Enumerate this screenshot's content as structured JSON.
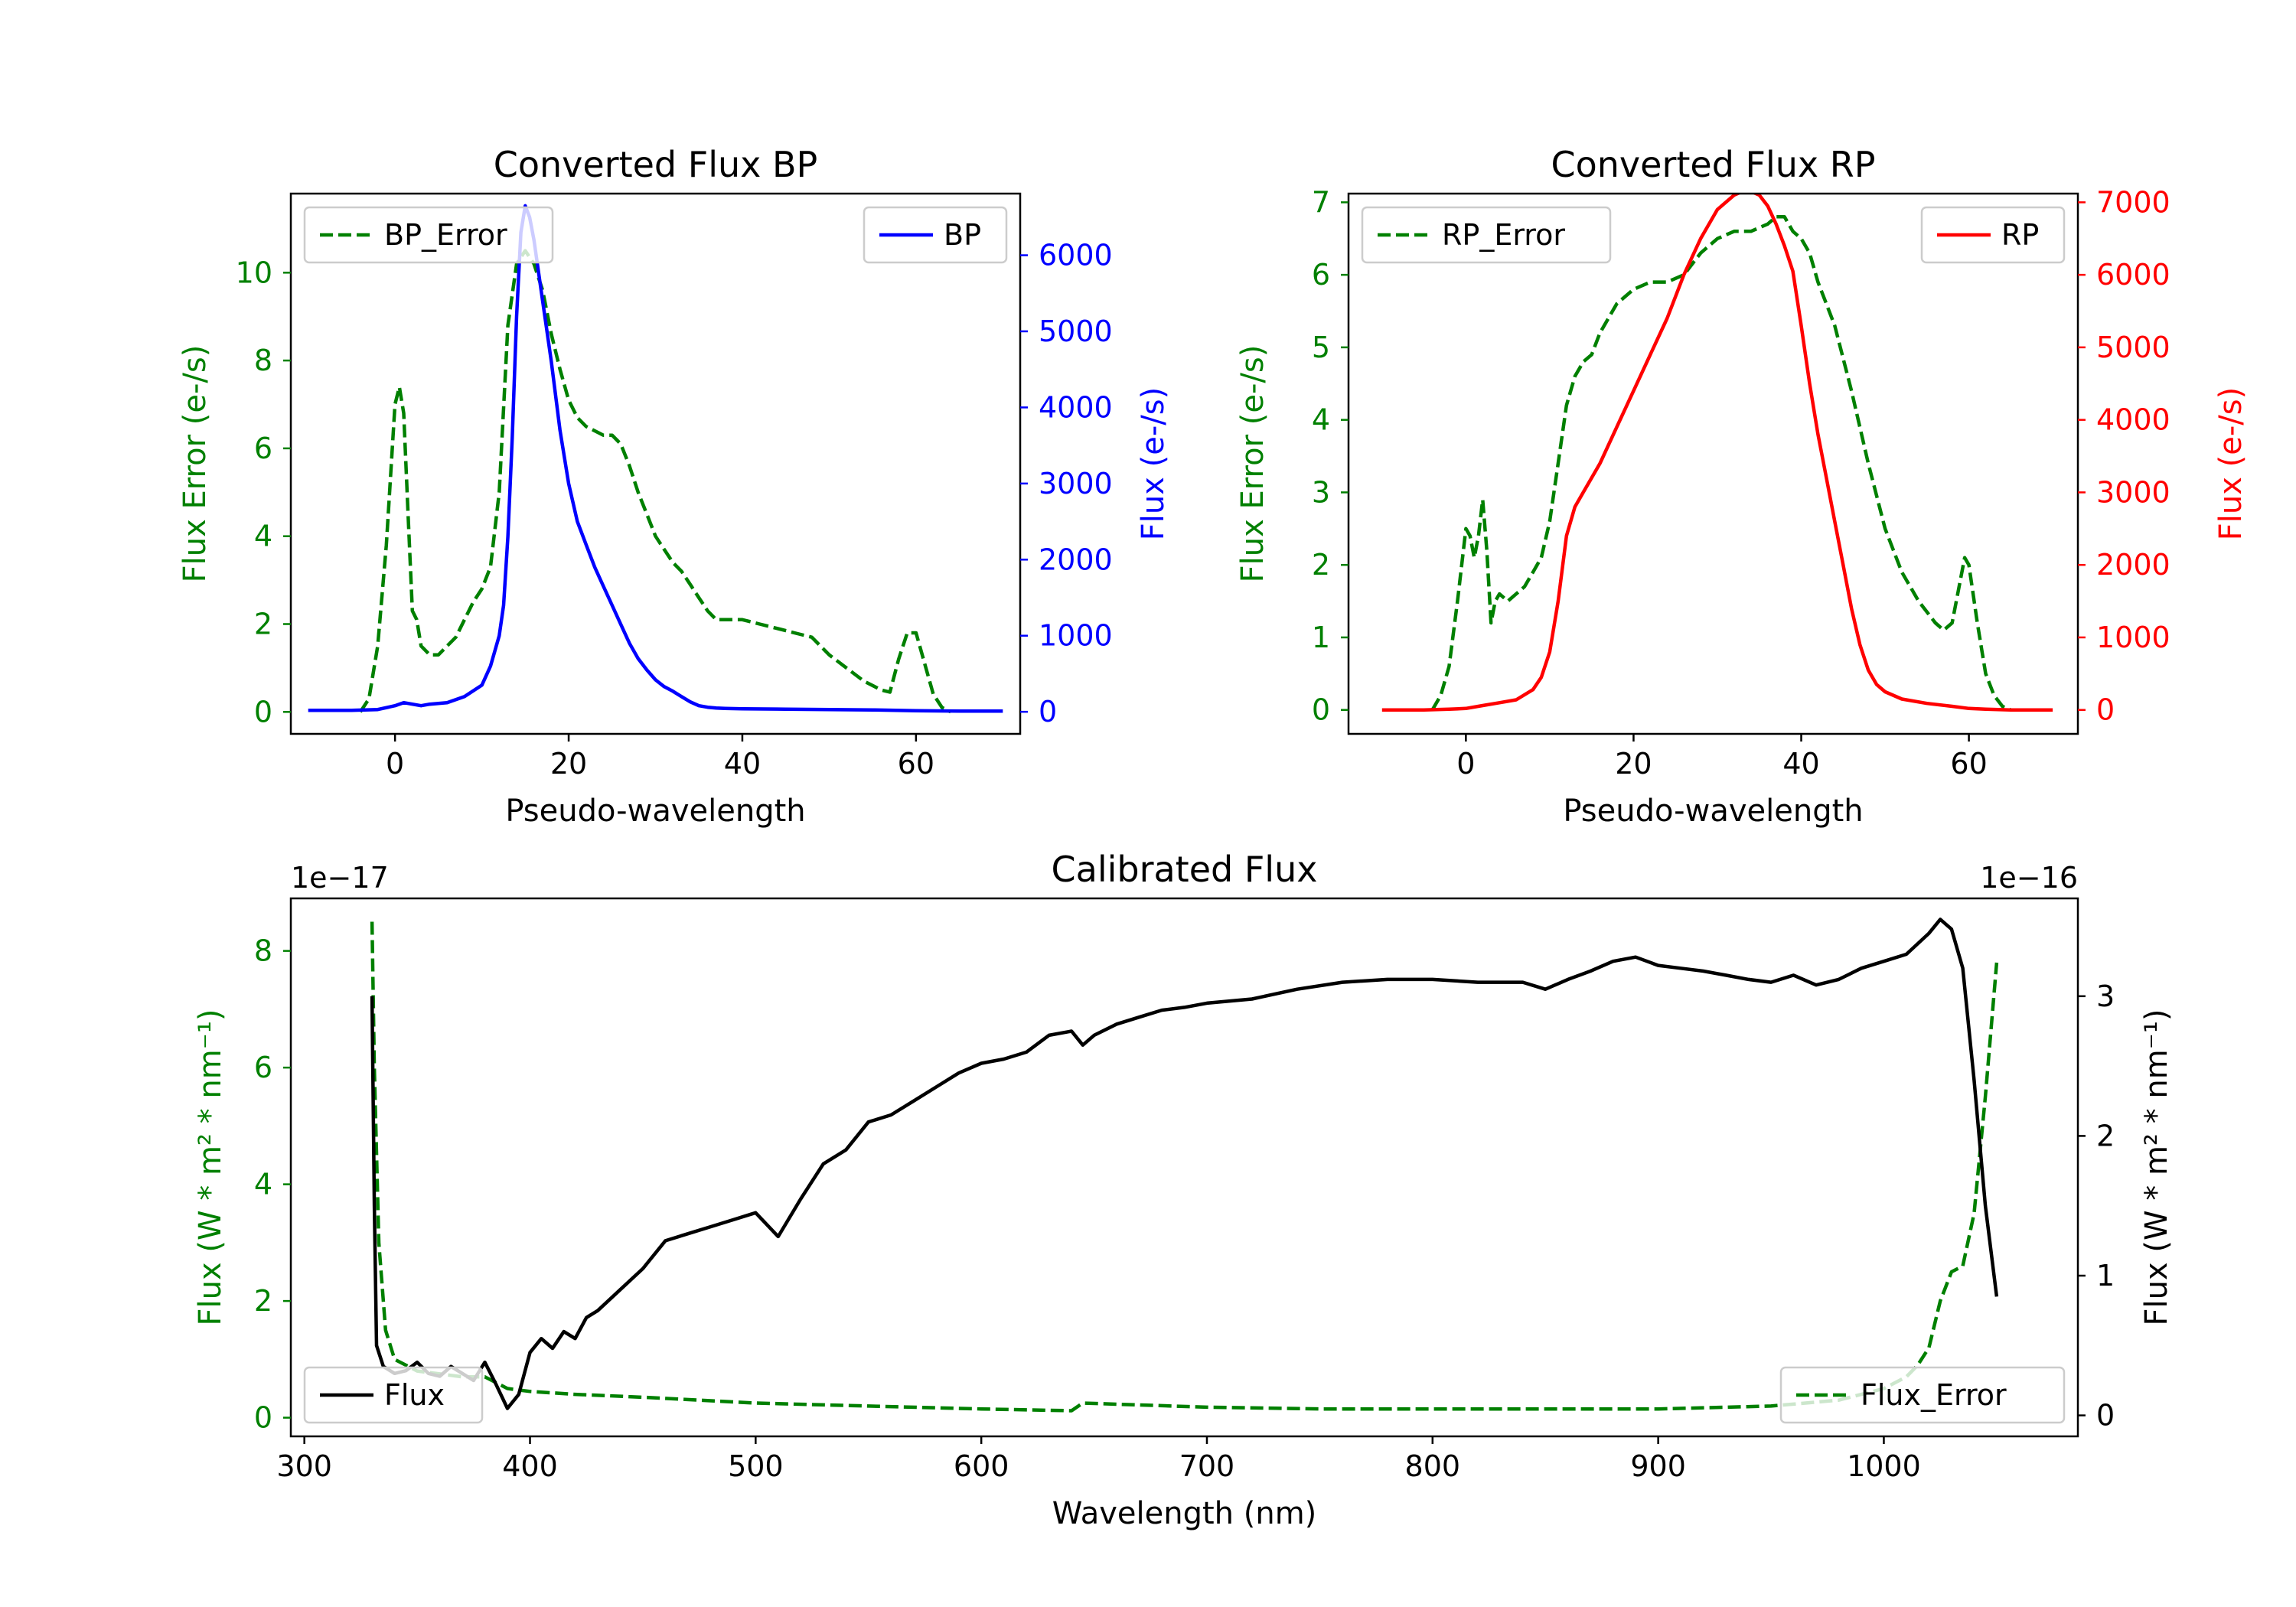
{
  "colors": {
    "green": "#008000",
    "blue": "#0000ff",
    "red": "#ff0000",
    "black": "#000000"
  },
  "chart_data": [
    {
      "id": "bp",
      "type": "line",
      "title": "Converted Flux BP",
      "xlabel": "Pseudo-wavelength",
      "ylabel_left": "Flux Error (e-/s)",
      "ylabel_right": "Flux (e-/s)",
      "xlim": [
        -12,
        72
      ],
      "ylim_left": [
        -0.5,
        11.8
      ],
      "ylim_right": [
        -290,
        6810
      ],
      "xticks": [
        0,
        20,
        40,
        60
      ],
      "yticks_left": [
        0,
        2,
        4,
        6,
        8,
        10
      ],
      "yticks_right": [
        0,
        1000,
        2000,
        3000,
        4000,
        5000,
        6000
      ],
      "left_axis_color": "#008000",
      "right_axis_color": "#0000ff",
      "series": [
        {
          "name": "BP_Error",
          "axis": "left",
          "style": "dashed",
          "color": "#008000",
          "x": [
            -4,
            -3,
            -2,
            -1,
            0,
            0.5,
            1,
            1.5,
            2,
            2.5,
            3,
            4,
            5,
            6,
            7,
            8,
            9,
            10,
            11,
            12,
            13,
            14,
            15,
            16,
            17,
            18,
            19,
            20,
            21,
            22,
            23,
            24,
            25,
            26,
            27,
            28,
            29,
            30,
            31,
            32,
            33,
            34,
            35,
            36,
            37,
            38,
            39,
            40,
            42,
            44,
            46,
            48,
            50,
            52,
            54,
            56,
            57,
            58,
            59,
            60,
            61,
            62,
            63,
            64
          ],
          "y": [
            0,
            0.3,
            1.5,
            3.8,
            7.0,
            7.4,
            6.8,
            4.5,
            2.3,
            2.1,
            1.5,
            1.3,
            1.3,
            1.5,
            1.7,
            2.1,
            2.5,
            2.8,
            3.3,
            5.0,
            8.8,
            10.2,
            10.5,
            10.2,
            9.6,
            8.6,
            7.8,
            7.1,
            6.7,
            6.5,
            6.4,
            6.3,
            6.3,
            6.1,
            5.6,
            5.0,
            4.5,
            4.0,
            3.7,
            3.4,
            3.2,
            2.9,
            2.6,
            2.3,
            2.1,
            2.1,
            2.1,
            2.1,
            2.0,
            1.9,
            1.8,
            1.7,
            1.3,
            1.0,
            0.7,
            0.5,
            0.45,
            1.2,
            1.8,
            1.8,
            1.1,
            0.4,
            0.1,
            0
          ]
        },
        {
          "name": "BP",
          "axis": "right",
          "style": "solid",
          "color": "#0000ff",
          "x": [
            -10,
            -5,
            -2,
            0,
            1,
            2,
            3,
            4,
            6,
            8,
            10,
            11,
            12,
            12.5,
            13,
            13.5,
            14,
            14.5,
            15,
            15.5,
            16,
            17,
            18,
            19,
            20,
            21,
            22,
            23,
            24,
            25,
            26,
            27,
            28,
            29,
            30,
            31,
            32,
            33,
            34,
            35,
            36,
            37,
            38,
            40,
            45,
            50,
            55,
            60,
            65,
            70
          ],
          "y": [
            20,
            20,
            30,
            80,
            120,
            100,
            80,
            100,
            120,
            200,
            350,
            600,
            1000,
            1400,
            2300,
            3600,
            5200,
            6300,
            6650,
            6500,
            6200,
            5400,
            4600,
            3700,
            3000,
            2500,
            2200,
            1900,
            1650,
            1400,
            1150,
            900,
            700,
            550,
            420,
            330,
            270,
            200,
            130,
            80,
            60,
            50,
            45,
            40,
            35,
            30,
            25,
            15,
            10,
            10
          ]
        }
      ],
      "legend": [
        {
          "label": "BP_Error",
          "position": "upper-left"
        },
        {
          "label": "BP",
          "position": "upper-right"
        }
      ]
    },
    {
      "id": "rp",
      "type": "line",
      "title": "Converted Flux RP",
      "xlabel": "Pseudo-wavelength",
      "ylabel_left": "Flux Error (e-/s)",
      "ylabel_right": "Flux (e-/s)",
      "xlim": [
        -14,
        73
      ],
      "ylim_left": [
        -0.33,
        7.12
      ],
      "ylim_right": [
        -330,
        7120
      ],
      "xticks": [
        0,
        20,
        40,
        60
      ],
      "yticks_left": [
        0,
        1,
        2,
        3,
        4,
        5,
        6,
        7
      ],
      "yticks_right": [
        0,
        1000,
        2000,
        3000,
        4000,
        5000,
        6000,
        7000
      ],
      "left_axis_color": "#008000",
      "right_axis_color": "#ff0000",
      "series": [
        {
          "name": "RP_Error",
          "axis": "left",
          "style": "dashed",
          "color": "#008000",
          "x": [
            -4,
            -3,
            -2,
            -1,
            0,
            0.5,
            1,
            1.5,
            2,
            2.5,
            3,
            3.5,
            4,
            5,
            6,
            7,
            8,
            9,
            10,
            11,
            12,
            13,
            14,
            15,
            16,
            18,
            20,
            22,
            24,
            26,
            28,
            30,
            32,
            34,
            36,
            37,
            38,
            39,
            40,
            41,
            42,
            44,
            46,
            48,
            50,
            52,
            54,
            56,
            57,
            58,
            59,
            59.5,
            60,
            61,
            62,
            63,
            64,
            65
          ],
          "y": [
            0,
            0.2,
            0.6,
            1.5,
            2.5,
            2.4,
            2.1,
            2.4,
            2.9,
            2.2,
            1.2,
            1.5,
            1.6,
            1.5,
            1.6,
            1.7,
            1.9,
            2.1,
            2.6,
            3.4,
            4.2,
            4.6,
            4.8,
            4.9,
            5.2,
            5.6,
            5.8,
            5.9,
            5.9,
            6.0,
            6.3,
            6.5,
            6.6,
            6.6,
            6.7,
            6.8,
            6.8,
            6.6,
            6.5,
            6.3,
            5.9,
            5.3,
            4.4,
            3.4,
            2.5,
            1.9,
            1.5,
            1.2,
            1.1,
            1.2,
            1.8,
            2.1,
            2.0,
            1.2,
            0.5,
            0.2,
            0.05,
            0
          ]
        },
        {
          "name": "RP",
          "axis": "right",
          "style": "solid",
          "color": "#ff0000",
          "x": [
            -10,
            -5,
            -2,
            0,
            2,
            4,
            6,
            8,
            9,
            10,
            11,
            12,
            13,
            14,
            16,
            18,
            20,
            22,
            24,
            26,
            28,
            30,
            32,
            33,
            34,
            35,
            36,
            37,
            38,
            39,
            40,
            41,
            42,
            43,
            44,
            45,
            46,
            47,
            48,
            49,
            50,
            52,
            55,
            58,
            60,
            62,
            65,
            70
          ],
          "y": [
            0,
            0,
            10,
            20,
            60,
            100,
            140,
            280,
            450,
            800,
            1500,
            2400,
            2800,
            3000,
            3400,
            3900,
            4400,
            4900,
            5400,
            6000,
            6500,
            6900,
            7100,
            7150,
            7150,
            7100,
            6950,
            6700,
            6400,
            6050,
            5300,
            4500,
            3800,
            3200,
            2600,
            2000,
            1400,
            900,
            550,
            350,
            250,
            150,
            90,
            50,
            20,
            10,
            0,
            0
          ]
        }
      ],
      "legend": [
        {
          "label": "RP_Error",
          "position": "upper-left"
        },
        {
          "label": "RP",
          "position": "upper-right"
        }
      ]
    },
    {
      "id": "cal",
      "type": "line",
      "title": "Calibrated Flux",
      "xlabel": "Wavelength (nm)",
      "ylabel_left": "Flux (W * m² * nm⁻¹)",
      "ylabel_right": "Flux (W * m² * nm⁻¹)",
      "offset_left": "1e−17",
      "offset_right": "1e−16",
      "xlim": [
        294,
        1086
      ],
      "ylim_left": [
        -0.32,
        8.9
      ],
      "ylim_right": [
        -0.15,
        3.7
      ],
      "xticks": [
        300,
        400,
        500,
        600,
        700,
        800,
        900,
        1000
      ],
      "yticks_left": [
        0,
        2,
        4,
        6,
        8
      ],
      "yticks_right": [
        0,
        1,
        2,
        3
      ],
      "left_axis_color": "#008000",
      "right_axis_color": "#000000",
      "series": [
        {
          "name": "Flux_Error",
          "axis": "left",
          "style": "dashed",
          "color": "#008000",
          "x": [
            330,
            331,
            333,
            336,
            340,
            345,
            350,
            360,
            370,
            380,
            390,
            400,
            420,
            450,
            500,
            550,
            600,
            640,
            645,
            700,
            750,
            800,
            850,
            900,
            950,
            980,
            1000,
            1010,
            1015,
            1020,
            1025,
            1030,
            1035,
            1040,
            1045,
            1050
          ],
          "y": [
            8.5,
            6.0,
            3.0,
            1.5,
            1.0,
            0.9,
            0.8,
            0.75,
            0.7,
            0.7,
            0.5,
            0.45,
            0.4,
            0.35,
            0.25,
            0.2,
            0.15,
            0.12,
            0.25,
            0.18,
            0.15,
            0.15,
            0.15,
            0.15,
            0.2,
            0.3,
            0.5,
            0.7,
            0.9,
            1.2,
            2.0,
            2.5,
            2.6,
            3.5,
            5.5,
            7.8
          ]
        },
        {
          "name": "Flux",
          "axis": "right",
          "style": "solid",
          "color": "#000000",
          "x": [
            330,
            331,
            332,
            335,
            340,
            345,
            350,
            355,
            360,
            365,
            370,
            375,
            380,
            385,
            390,
            395,
            400,
            405,
            410,
            415,
            420,
            425,
            430,
            440,
            450,
            460,
            470,
            480,
            490,
            500,
            510,
            520,
            530,
            540,
            550,
            560,
            570,
            580,
            590,
            600,
            610,
            620,
            630,
            640,
            645,
            650,
            660,
            670,
            680,
            690,
            700,
            720,
            740,
            760,
            780,
            800,
            820,
            840,
            850,
            860,
            870,
            880,
            890,
            900,
            910,
            920,
            930,
            940,
            950,
            960,
            970,
            980,
            990,
            1000,
            1010,
            1020,
            1025,
            1030,
            1035,
            1040,
            1045,
            1050
          ],
          "y": [
            3.0,
            1.5,
            0.5,
            0.35,
            0.3,
            0.32,
            0.38,
            0.3,
            0.28,
            0.35,
            0.3,
            0.25,
            0.38,
            0.22,
            0.05,
            0.15,
            0.45,
            0.55,
            0.48,
            0.6,
            0.55,
            0.7,
            0.75,
            0.9,
            1.05,
            1.25,
            1.3,
            1.35,
            1.4,
            1.45,
            1.28,
            1.55,
            1.8,
            1.9,
            2.1,
            2.15,
            2.25,
            2.35,
            2.45,
            2.52,
            2.55,
            2.6,
            2.72,
            2.75,
            2.65,
            2.72,
            2.8,
            2.85,
            2.9,
            2.92,
            2.95,
            2.98,
            3.05,
            3.1,
            3.12,
            3.12,
            3.1,
            3.1,
            3.05,
            3.12,
            3.18,
            3.25,
            3.28,
            3.22,
            3.2,
            3.18,
            3.15,
            3.12,
            3.1,
            3.15,
            3.08,
            3.12,
            3.2,
            3.25,
            3.3,
            3.45,
            3.55,
            3.48,
            3.2,
            2.4,
            1.5,
            0.85
          ]
        }
      ],
      "legend": [
        {
          "label": "Flux",
          "position": "lower-left"
        },
        {
          "label": "Flux_Error",
          "position": "lower-right"
        }
      ]
    }
  ]
}
